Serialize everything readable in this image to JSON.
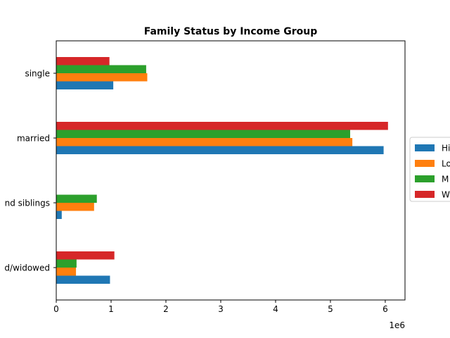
{
  "chart_data": {
    "type": "bar",
    "orientation": "horizontal",
    "title": "Family Status by Income Group",
    "xlabel": "",
    "ylabel": "",
    "x_offset_label": "1e6",
    "x_ticks": [
      0,
      1,
      2,
      3,
      4,
      5,
      6
    ],
    "xlim": [
      0,
      6.36
    ],
    "x_unit_multiplier": 1000000,
    "categories": [
      "single",
      "married",
      "siblings",
      "divorced/widowed"
    ],
    "category_labels_visible": [
      "single",
      "married",
      "nd siblings",
      "d/widowed"
    ],
    "legend_labels_visible": [
      "Hi",
      "Lo",
      "M",
      "W"
    ],
    "legend_position": "right (clipped)",
    "grid": false,
    "series": [
      {
        "name": "High",
        "color": "#1f77b4",
        "values": [
          1.04,
          5.97,
          0.1,
          0.98
        ]
      },
      {
        "name": "Low",
        "color": "#ff7f0e",
        "values": [
          1.66,
          5.4,
          0.69,
          0.36
        ]
      },
      {
        "name": "Middle",
        "color": "#2ca02c",
        "values": [
          1.64,
          5.36,
          0.74,
          0.37
        ]
      },
      {
        "name": "Wealthy",
        "color": "#d62728",
        "values": [
          0.97,
          6.05,
          0.0,
          1.06
        ]
      }
    ]
  }
}
